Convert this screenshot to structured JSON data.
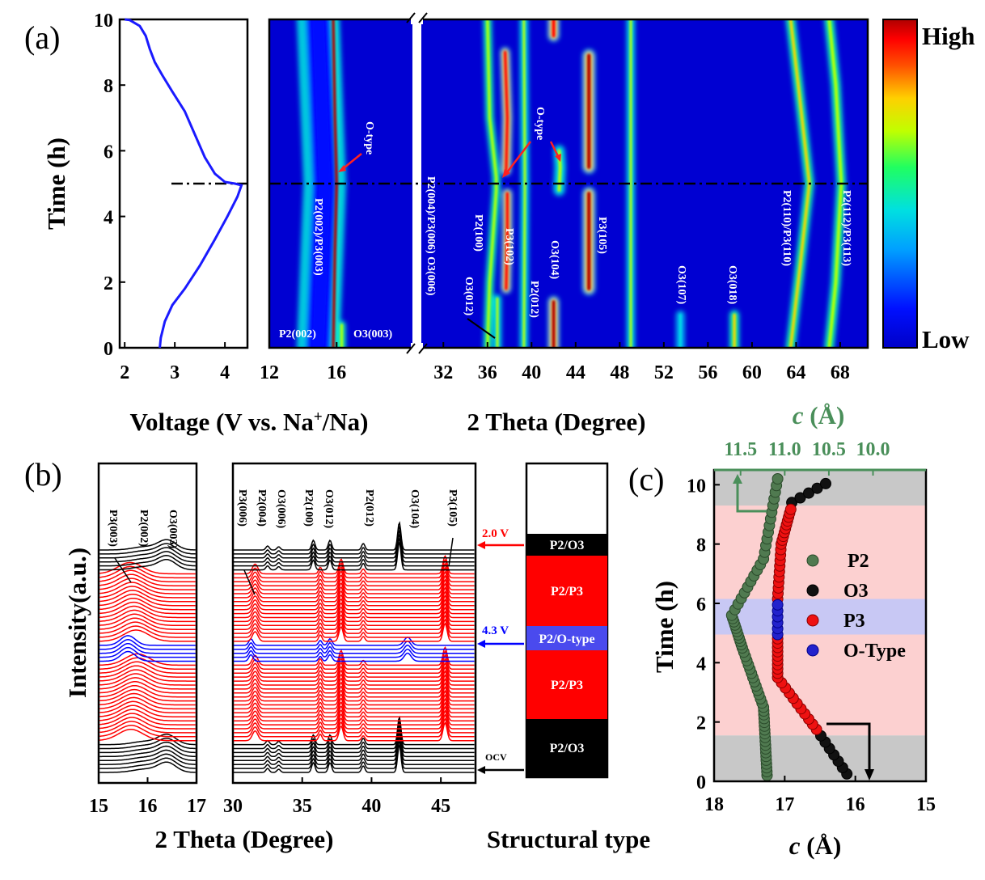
{
  "panel_labels": {
    "a": "(a)",
    "b": "(b)",
    "c": "(c)"
  },
  "colorbar": {
    "high": "High",
    "low": "Low"
  },
  "chart_data": [
    {
      "id": "a-voltage",
      "type": "line",
      "xlabel_pre": "Voltage (V vs. Na",
      "xlabel_sup": "+",
      "xlabel_post": "/Na)",
      "ylabel": "Time (h)",
      "xlim": [
        1.9,
        4.45
      ],
      "ylim": [
        0,
        10
      ],
      "xticks": [
        "2",
        "3",
        "4"
      ],
      "xtick_values": [
        2,
        3,
        4
      ],
      "yticks": [
        "0",
        "2",
        "4",
        "6",
        "8",
        "10"
      ],
      "ytick_values": [
        0,
        2,
        4,
        6,
        8,
        10
      ],
      "series": [
        {
          "color": "#1a1aff",
          "points": [
            [
              2.7,
              0
            ],
            [
              2.72,
              0.3
            ],
            [
              2.8,
              0.8
            ],
            [
              2.95,
              1.3
            ],
            [
              3.2,
              1.8
            ],
            [
              3.5,
              2.5
            ],
            [
              3.8,
              3.3
            ],
            [
              4.05,
              4.0
            ],
            [
              4.25,
              4.6
            ],
            [
              4.33,
              4.95
            ],
            [
              4.2,
              5.0
            ],
            [
              4.0,
              5.05
            ],
            [
              3.8,
              5.3
            ],
            [
              3.6,
              5.8
            ],
            [
              3.4,
              6.5
            ],
            [
              3.2,
              7.2
            ],
            [
              2.95,
              7.8
            ],
            [
              2.75,
              8.3
            ],
            [
              2.6,
              8.7
            ],
            [
              2.5,
              9.1
            ],
            [
              2.42,
              9.5
            ],
            [
              2.3,
              9.8
            ],
            [
              2.1,
              9.98
            ],
            [
              2.0,
              10.0
            ]
          ]
        }
      ],
      "reference_line": {
        "y": 5.0,
        "style": "dash-dot"
      }
    },
    {
      "id": "a-contour",
      "type": "heatmap",
      "xlabel": "2 Theta (Degree)",
      "ylim": [
        0,
        10
      ],
      "x_segments": [
        [
          12,
          20.5
        ],
        [
          30,
          70.5
        ]
      ],
      "xticks": [
        "12",
        "16",
        "32",
        "36",
        "40",
        "44",
        "48",
        "52",
        "56",
        "60",
        "64",
        "68"
      ],
      "xtick_values": [
        12,
        16,
        32,
        36,
        40,
        44,
        48,
        52,
        56,
        60,
        64,
        68
      ],
      "colormap": [
        "#0000c8",
        "#0010ff",
        "#00a0ff",
        "#00e0e0",
        "#20ff60",
        "#c0ff00",
        "#ffd000",
        "#ff5000",
        "#ff0000",
        "#b00000"
      ],
      "peaks": [
        {
          "pts": [
            [
              15.8,
              0
            ],
            [
              15.9,
              3
            ],
            [
              16.0,
              5
            ],
            [
              15.9,
              7
            ],
            [
              15.8,
              10
            ]
          ],
          "w": 0.35,
          "i": 0.95
        },
        {
          "pts": [
            [
              16.3,
              0
            ],
            [
              16.3,
              0.7
            ]
          ],
          "w": 0.25,
          "i": 0.6
        },
        {
          "pts": [
            [
              14.9,
              0
            ],
            [
              15.3,
              5
            ],
            [
              14.9,
              10
            ]
          ],
          "w": 1.5,
          "i": 0.15
        },
        {
          "pts": [
            [
              36.0,
              0
            ],
            [
              36.2,
              2
            ],
            [
              36.8,
              4.8
            ],
            [
              36.8,
              5.2
            ],
            [
              36.2,
              7
            ],
            [
              36.0,
              10
            ]
          ],
          "w": 0.3,
          "i": 0.6
        },
        {
          "pts": [
            [
              36.9,
              0
            ],
            [
              36.9,
              1.5
            ]
          ],
          "w": 0.25,
          "i": 0.55
        },
        {
          "pts": [
            [
              37.7,
              1.8
            ],
            [
              37.8,
              3.5
            ],
            [
              37.8,
              4.7
            ]
          ],
          "w": 0.35,
          "i": 0.9
        },
        {
          "pts": [
            [
              37.7,
              5.4
            ],
            [
              37.8,
              7
            ],
            [
              37.6,
              9
            ]
          ],
          "w": 0.35,
          "i": 0.9
        },
        {
          "pts": [
            [
              39.3,
              0
            ],
            [
              39.4,
              5
            ],
            [
              39.3,
              10
            ]
          ],
          "w": 0.22,
          "i": 0.5
        },
        {
          "pts": [
            [
              42.0,
              0
            ],
            [
              42.0,
              1.4
            ]
          ],
          "w": 0.4,
          "i": 1.0
        },
        {
          "pts": [
            [
              42.0,
              9.5
            ],
            [
              42.0,
              10
            ]
          ],
          "w": 0.4,
          "i": 0.9
        },
        {
          "pts": [
            [
              42.5,
              4.8
            ],
            [
              42.6,
              5.5
            ],
            [
              42.5,
              6.0
            ]
          ],
          "w": 0.4,
          "i": 0.5
        },
        {
          "pts": [
            [
              45.2,
              1.8
            ],
            [
              45.2,
              4.7
            ]
          ],
          "w": 0.45,
          "i": 0.95
        },
        {
          "pts": [
            [
              45.2,
              5.5
            ],
            [
              45.2,
              8.9
            ]
          ],
          "w": 0.45,
          "i": 0.95
        },
        {
          "pts": [
            [
              49.0,
              0
            ],
            [
              49.0,
              10
            ]
          ],
          "w": 0.18,
          "i": 0.5
        },
        {
          "pts": [
            [
              53.5,
              0
            ],
            [
              53.5,
              1.0
            ]
          ],
          "w": 0.3,
          "i": 0.35
        },
        {
          "pts": [
            [
              58.4,
              0
            ],
            [
              58.4,
              1.0
            ]
          ],
          "w": 0.35,
          "i": 0.65
        },
        {
          "pts": [
            [
              63.5,
              0
            ],
            [
              64.2,
              2
            ],
            [
              65.2,
              5
            ],
            [
              64.2,
              8
            ],
            [
              63.5,
              10
            ]
          ],
          "w": 0.35,
          "i": 0.65
        },
        {
          "pts": [
            [
              67.0,
              0
            ],
            [
              67.6,
              2
            ],
            [
              68.1,
              5
            ],
            [
              67.6,
              8
            ],
            [
              67.0,
              10
            ]
          ],
          "w": 0.35,
          "i": 0.6
        }
      ],
      "labels": [
        "P2(002)",
        "P2(002)/P3(003)",
        "O3(003)",
        "P2(004)/P3(006) O3(006)",
        "O3(012)",
        "P2(100)",
        "P3(102)",
        "P2(012)",
        "O3(104)",
        "P3(105)",
        "O3(107)",
        "O3(018)",
        "P2(110)/P3(110)",
        "P2(112)/P3(113)",
        "O-type",
        "O-type"
      ]
    },
    {
      "id": "b-xrd",
      "type": "line",
      "xlabel": "2 Theta (Degree)",
      "ylabel": "Intensity(a.u.)",
      "left_xlim": [
        15,
        17
      ],
      "left_xticks": [
        "15",
        "16",
        "17"
      ],
      "right_xlim": [
        30,
        47.5
      ],
      "right_xticks": [
        "30",
        "35",
        "40",
        "45"
      ],
      "right_xtick_values": [
        30,
        35,
        40,
        45
      ],
      "series_colors": [
        "#000000",
        "#ff0000",
        "#0000ff",
        "#ff0000",
        "#000000"
      ],
      "series_counts": [
        8,
        20,
        5,
        18,
        6
      ],
      "left_labels": [
        "P3(003)",
        "P2(002)",
        "O3(003)"
      ],
      "right_labels": [
        "P3(006)",
        "P2(004)",
        "O3(006)",
        "P2(100)",
        "O3(012)",
        "P2(012)",
        "O3(104)",
        "P3(105)"
      ],
      "markers": [
        "2.0 V",
        "4.3 V",
        "OCV"
      ]
    },
    {
      "id": "b-structure",
      "type": "table",
      "xlabel": "Structural type",
      "segments": [
        "P2/O3",
        "P2/P3",
        "P2/O-type",
        "P2/P3",
        "P2/O3"
      ]
    },
    {
      "id": "c-lattice",
      "type": "scatter",
      "xlabel_it": "c",
      "xlabel_rest": " (Å)",
      "top_xlabel_it": "c",
      "top_xlabel_rest": " (Å)",
      "ylabel": "Time (h)",
      "xlim": [
        18,
        15
      ],
      "ylim": [
        0,
        10.5
      ],
      "xticks": [
        "18",
        "17",
        "16",
        "15"
      ],
      "top_xlim": [
        11.8,
        9.4
      ],
      "top_xticks": [
        "11.5",
        "11.0",
        "10.5",
        "10.0"
      ],
      "top_xtick_values": [
        11.5,
        11.0,
        10.5,
        10.0
      ],
      "yticks": [
        "0",
        "2",
        "4",
        "6",
        "8",
        "10"
      ],
      "regions": [
        {
          "y": [
            0,
            1.55
          ],
          "color": "#c8c8c8"
        },
        {
          "y": [
            1.55,
            4.95
          ],
          "color": "#fcd0d0"
        },
        {
          "y": [
            4.95,
            6.15
          ],
          "color": "#c8c8f4"
        },
        {
          "y": [
            6.15,
            9.3
          ],
          "color": "#fcd0d0"
        },
        {
          "y": [
            9.3,
            10.5
          ],
          "color": "#c8c8c8"
        }
      ],
      "legend": [
        "P2",
        "O3",
        "P3",
        "O-Type"
      ],
      "series": [
        {
          "name": "P2",
          "color": "#507a50",
          "x": [
            17.25,
            17.3,
            17.6,
            17.75,
            17.3,
            17.1
          ],
          "y": [
            0.2,
            2.5,
            4.5,
            5.6,
            7.5,
            10.2
          ],
          "n": [
            18,
            14,
            10,
            10,
            12,
            12
          ]
        },
        {
          "name": "O3",
          "color": "#111111",
          "x": [
            16.12,
            16.55
          ],
          "y": [
            0.25,
            1.75
          ],
          "n": [
            7,
            0
          ]
        },
        {
          "name": "O3",
          "color": "#111111",
          "x": [
            16.9,
            16.3
          ],
          "y": [
            9.4,
            10.2
          ],
          "n": [
            5,
            0
          ]
        },
        {
          "name": "P3",
          "color": "#ee1111",
          "x": [
            16.55,
            17.1,
            17.1
          ],
          "y": [
            1.75,
            3.5,
            4.95
          ],
          "n": [
            10,
            10,
            0
          ]
        },
        {
          "name": "P3",
          "color": "#ee1111",
          "x": [
            17.1,
            17.05,
            16.9
          ],
          "y": [
            6.15,
            8.0,
            9.3
          ],
          "n": [
            10,
            10,
            0
          ]
        },
        {
          "name": "O-Type",
          "color": "#2222cc",
          "x": [
            17.1,
            17.1
          ],
          "y": [
            4.95,
            6.15
          ],
          "n": [
            6,
            0
          ]
        }
      ]
    }
  ]
}
